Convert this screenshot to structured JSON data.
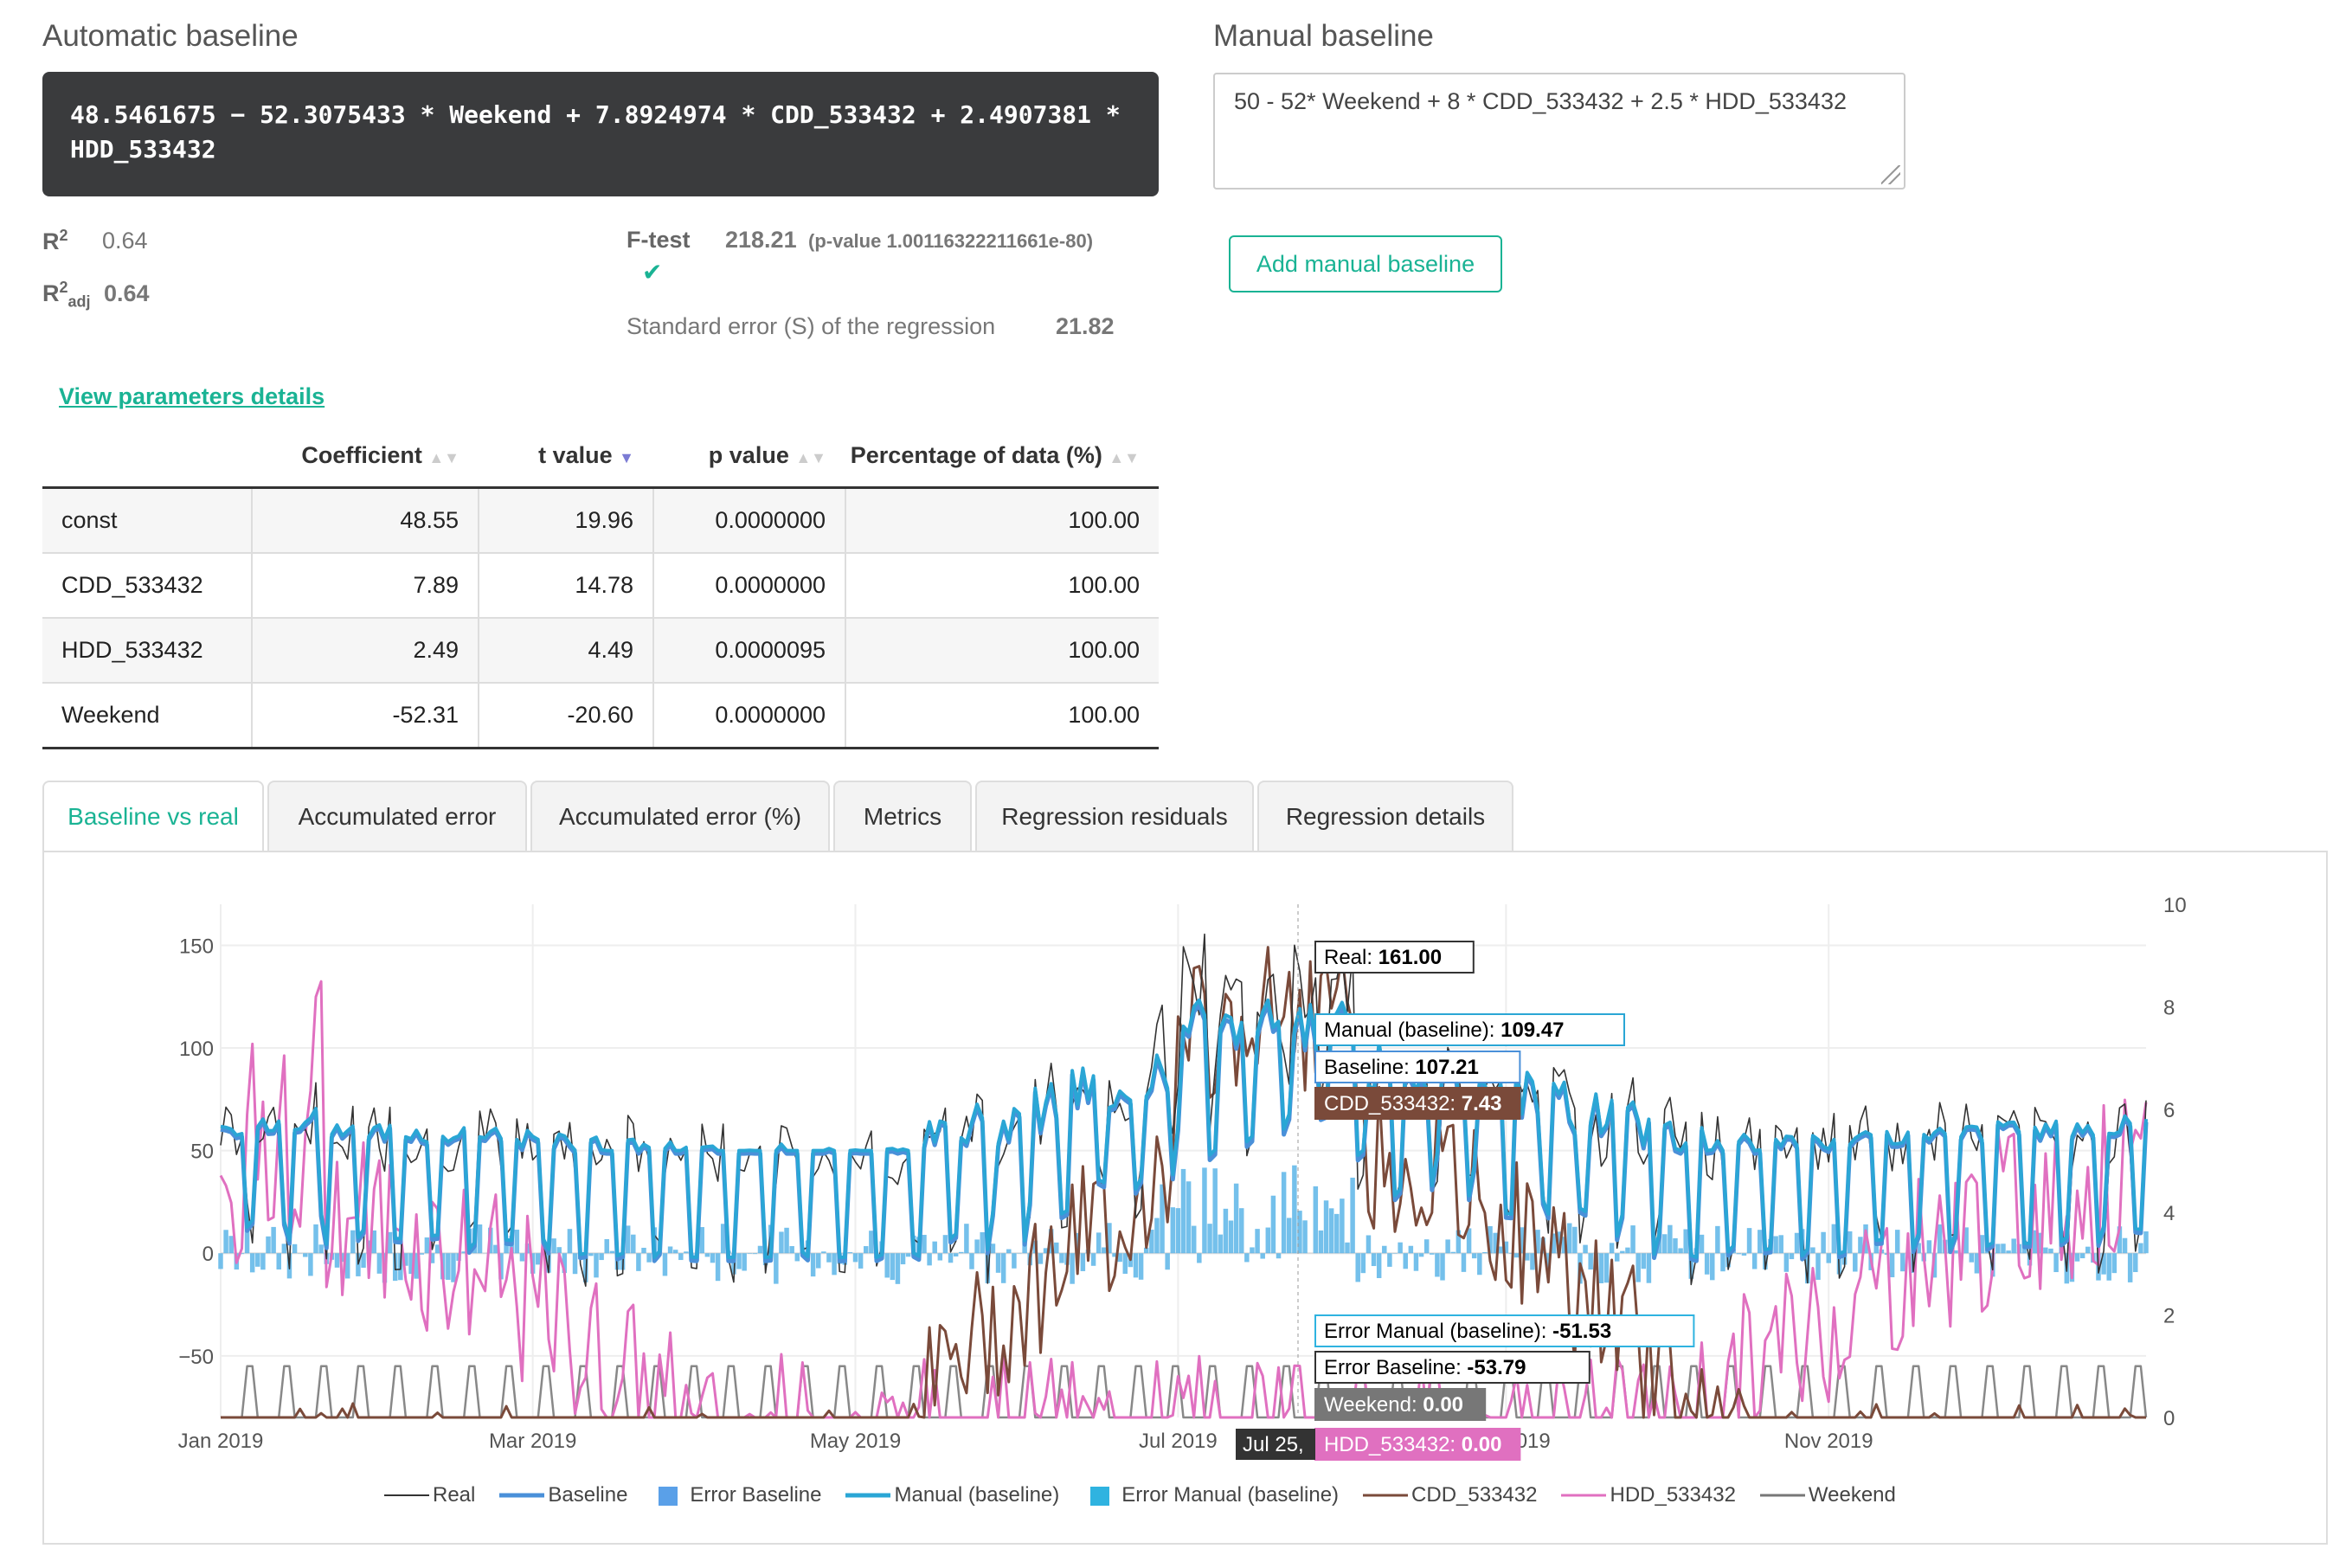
{
  "auto": {
    "title": "Automatic baseline",
    "formula": "48.5461675 − 52.3075433 * Weekend + 7.8924974 * CDD_533432 + 2.4907381 * HDD_533432",
    "r2_label": "R²",
    "r2_value": "0.64",
    "r2adj_label": "R²adj",
    "r2adj_value": "0.64",
    "ftest_label": "F-test",
    "ftest_value": "218.21",
    "ftest_pvalue": "(p-value 1.00116322211661e-80)",
    "ftest_check": "✔",
    "se_label": "Standard error (S) of the regression",
    "se_value": "21.82",
    "params_link": "View parameters details"
  },
  "manual": {
    "title": "Manual baseline",
    "formula": "50 - 52* Weekend + 8 * CDD_533432 + 2.5 * HDD_533432",
    "add_button": "Add manual baseline"
  },
  "params_table": {
    "headers": [
      "",
      "Coefficient",
      "t value",
      "p value",
      "Percentage of data (%)"
    ],
    "rows": [
      [
        "const",
        "48.55",
        "19.96",
        "0.0000000",
        "100.00"
      ],
      [
        "CDD_533432",
        "7.89",
        "14.78",
        "0.0000000",
        "100.00"
      ],
      [
        "HDD_533432",
        "2.49",
        "4.49",
        "0.0000095",
        "100.00"
      ],
      [
        "Weekend",
        "-52.31",
        "-20.60",
        "0.0000000",
        "100.00"
      ]
    ]
  },
  "tabs": [
    "Baseline vs real",
    "Accumulated error",
    "Accumulated error (%)",
    "Metrics",
    "Regression residuals",
    "Regression details"
  ],
  "chart_data": {
    "type": "line",
    "x_ticks": [
      "Jan 2019",
      "Mar 2019",
      "May 2019",
      "Jul 2019",
      "Sep 2019",
      "Nov 2019"
    ],
    "y_left_ticks": [
      "150",
      "100",
      "50",
      "0",
      "−50"
    ],
    "y_left_range": [
      -80,
      170
    ],
    "y_right_ticks": [
      "10",
      "8",
      "6",
      "4",
      "2",
      "0"
    ],
    "y_right_range": [
      0,
      10
    ],
    "series": [
      {
        "name": "Real",
        "color": "#333333"
      },
      {
        "name": "Baseline",
        "color": "#4a90d9"
      },
      {
        "name": "Error Baseline",
        "color": "#5aa0e8"
      },
      {
        "name": "Manual (baseline)",
        "color": "#2aa6d5"
      },
      {
        "name": "Error Manual (baseline)",
        "color": "#2fb3e0"
      },
      {
        "name": "CDD_533432",
        "color": "#7a4a3a"
      },
      {
        "name": "HDD_533432",
        "color": "#e070c0"
      },
      {
        "name": "Weekend",
        "color": "#777777"
      }
    ],
    "hover_date": "Jul 25,",
    "tooltips": [
      {
        "label": "Real:",
        "value": "161.00"
      },
      {
        "label": "Manual (baseline):",
        "value": "109.47"
      },
      {
        "label": "Baseline:",
        "value": "107.21"
      },
      {
        "label": "CDD_533432:",
        "value": "7.43"
      },
      {
        "label": "Error Manual (baseline):",
        "value": "-51.53"
      },
      {
        "label": "Error Baseline:",
        "value": "-53.79"
      },
      {
        "label": "Weekend:",
        "value": "0.00"
      },
      {
        "label": "HDD_533432:",
        "value": "0.00"
      }
    ],
    "legend_position": "bottom"
  }
}
